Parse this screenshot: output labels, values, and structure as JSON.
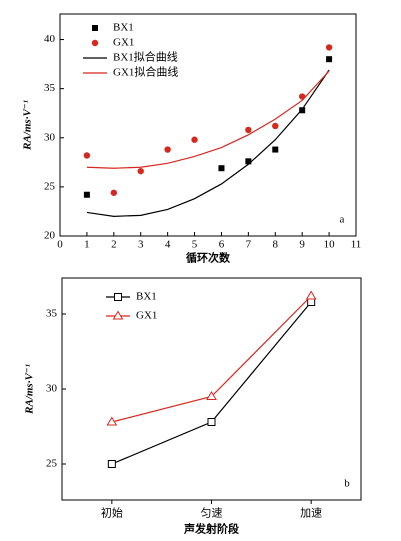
{
  "chart_data": [
    {
      "type": "scatter",
      "label": "a",
      "xlabel": "循环次数",
      "ylabel": "RA/ms·V⁻¹",
      "xlim": [
        0,
        11
      ],
      "xticks": [
        0,
        1,
        2,
        3,
        4,
        5,
        6,
        7,
        8,
        9,
        10,
        11
      ],
      "ylim": [
        20,
        42.6
      ],
      "yticks": [
        20,
        25,
        30,
        35,
        40
      ],
      "series": [
        {
          "name": "BX1",
          "color": "#000000",
          "marker": "square",
          "x": [
            1,
            6,
            7,
            8,
            9,
            10
          ],
          "values": [
            24.2,
            26.9,
            27.6,
            28.8,
            32.8,
            38.0
          ]
        },
        {
          "name": "GX1",
          "color": "#d7281f",
          "marker": "circle",
          "x": [
            1,
            2,
            3,
            4,
            5,
            7,
            8,
            9,
            10
          ],
          "values": [
            28.2,
            24.4,
            26.6,
            28.8,
            29.8,
            30.8,
            31.2,
            34.2,
            39.2
          ]
        },
        {
          "name": "BX1拟合曲线",
          "color": "#000000",
          "x": [
            1,
            2,
            3,
            4,
            5,
            6,
            7,
            8,
            9,
            10
          ],
          "values": [
            22.4,
            22.0,
            22.1,
            22.7,
            23.8,
            25.3,
            27.3,
            29.8,
            32.9,
            36.9
          ]
        },
        {
          "name": "GX1拟合曲线",
          "color": "#d7281f",
          "x": [
            1,
            2,
            3,
            4,
            5,
            6,
            7,
            8,
            9,
            10
          ],
          "values": [
            27.0,
            26.9,
            27.0,
            27.4,
            28.1,
            29.0,
            30.3,
            31.9,
            33.8,
            36.8
          ]
        }
      ]
    },
    {
      "type": "line",
      "label": "b",
      "xlabel": "声发射阶段",
      "ylabel": "RA/ms·V⁻¹",
      "categories": [
        "初始",
        "匀速",
        "加速"
      ],
      "ylim": [
        22.6,
        37.4
      ],
      "yticks": [
        25,
        30,
        35
      ],
      "series": [
        {
          "name": "BX1",
          "color": "#000000",
          "marker": "open-square",
          "values": [
            25.0,
            27.8,
            35.8
          ]
        },
        {
          "name": "GX1",
          "color": "#d7281f",
          "marker": "open-triangle",
          "values": [
            27.8,
            29.5,
            36.2
          ]
        }
      ]
    }
  ]
}
